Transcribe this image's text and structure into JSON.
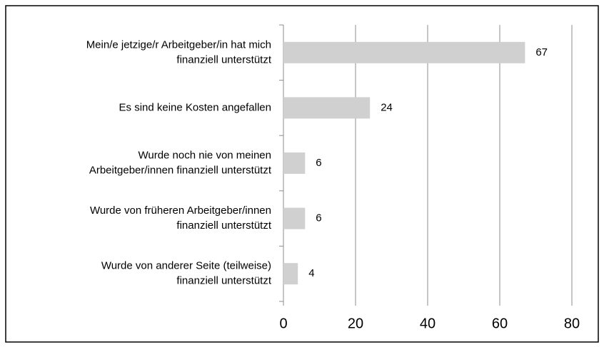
{
  "chart_data": {
    "type": "bar",
    "orientation": "horizontal",
    "categories": [
      [
        "Mein/e jetzige/r Arbeitgeber/in hat mich",
        "finanziell unterstützt"
      ],
      [
        "Es sind keine Kosten angefallen"
      ],
      [
        "Wurde noch nie von meinen",
        "Arbeitgeber/innen finanziell unterstützt"
      ],
      [
        "Wurde von früheren Arbeitgeber/innen",
        "finanziell unterstützt"
      ],
      [
        "Wurde von anderer Seite (teilweise)",
        "finanziell unterstützt"
      ]
    ],
    "values": [
      67,
      24,
      6,
      6,
      4
    ],
    "color": "#d0d0d0",
    "xlim": [
      0,
      80
    ],
    "xticks": [
      0,
      20,
      40,
      60,
      80
    ],
    "grid": true
  }
}
